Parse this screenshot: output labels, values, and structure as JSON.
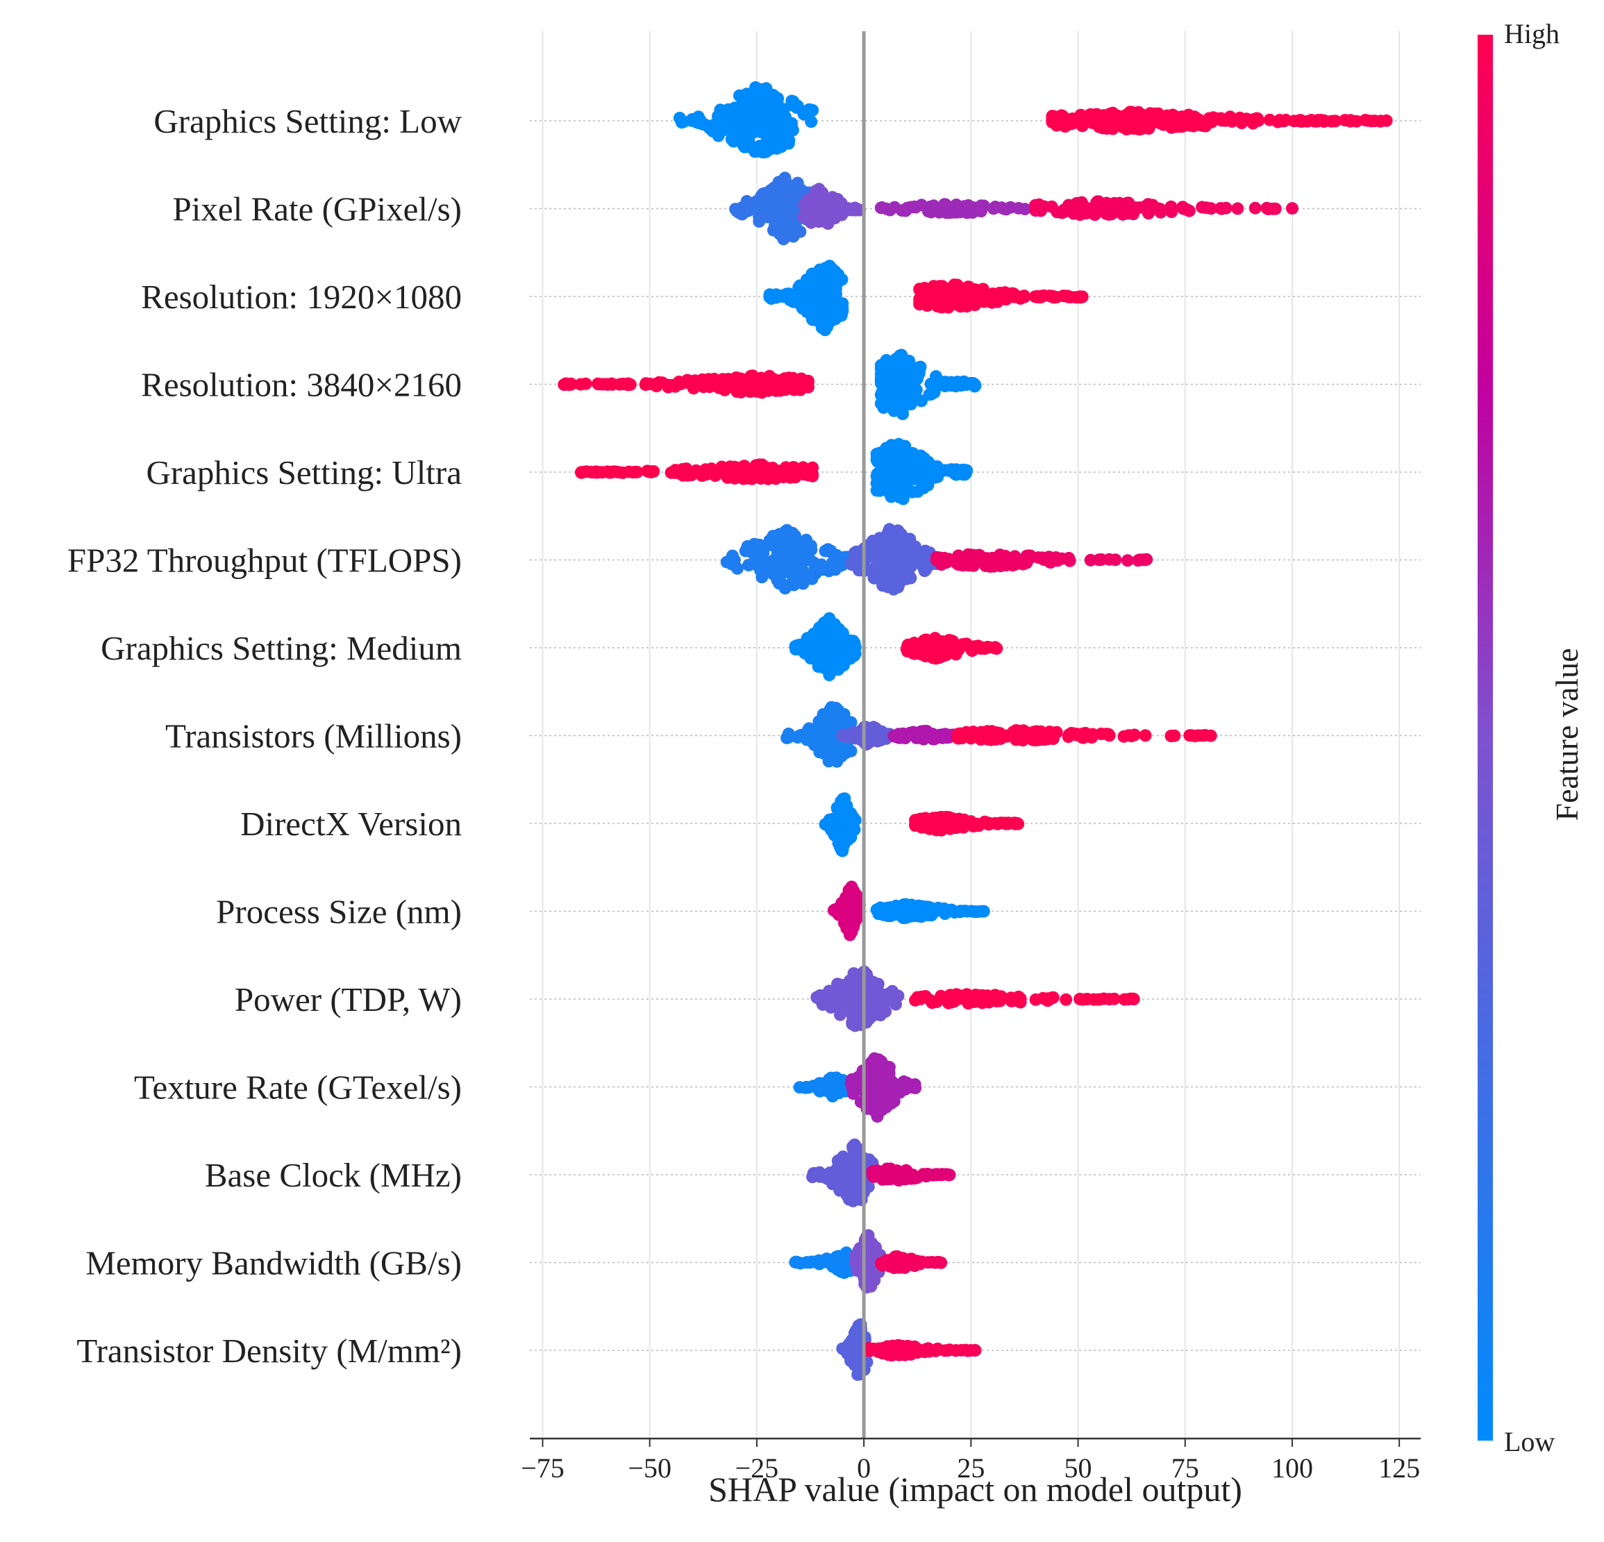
{
  "chart_data": {
    "type": "scatter",
    "subtype": "shap-beeswarm",
    "xlabel": "SHAP value (impact on model output)",
    "xlim": [
      -78,
      130
    ],
    "xticks": [
      -75,
      -50,
      -25,
      0,
      25,
      50,
      75,
      100,
      125
    ],
    "xtick_labels": [
      "−75",
      "−50",
      "−25",
      "0",
      "25",
      "50",
      "75",
      "100",
      "125"
    ],
    "zero_line": true,
    "grid": true,
    "colorbar": {
      "title": "Feature value",
      "high_label": "High",
      "low_label": "Low",
      "low_color": "#008bfb",
      "high_color": "#ff0051"
    },
    "features": [
      {
        "name": "Graphics Setting: Low",
        "clusters": [
          {
            "min": -43,
            "max": -12,
            "center": -24,
            "color": 0.0,
            "h": 1.0,
            "n": 180
          },
          {
            "min": 44,
            "max": 122,
            "center": 63,
            "color": 1.0,
            "h": 0.25,
            "n": 220
          }
        ]
      },
      {
        "name": "Pixel Rate (GPixel/s)",
        "clusters": [
          {
            "min": -30,
            "max": -7,
            "center": -18,
            "color": 0.2,
            "h": 0.9,
            "n": 150
          },
          {
            "min": -14,
            "max": -1,
            "center": -10,
            "color": 0.5,
            "h": 0.6,
            "n": 70
          },
          {
            "min": 4,
            "max": 40,
            "center": 20,
            "color": 0.62,
            "h": 0.15,
            "n": 70
          },
          {
            "min": 40,
            "max": 100,
            "center": 55,
            "color": 0.95,
            "h": 0.2,
            "n": 110
          }
        ]
      },
      {
        "name": "Resolution: 1920×1080",
        "clusters": [
          {
            "min": -22,
            "max": -5,
            "center": -9,
            "color": 0.0,
            "h": 0.95,
            "n": 160
          },
          {
            "min": 13,
            "max": 51,
            "center": 20,
            "color": 1.0,
            "h": 0.35,
            "n": 170
          }
        ]
      },
      {
        "name": "Resolution: 3840×2160",
        "clusters": [
          {
            "min": -70,
            "max": -13,
            "center": -25,
            "color": 1.0,
            "h": 0.25,
            "n": 190
          },
          {
            "min": 4,
            "max": 26,
            "center": 8,
            "color": 0.0,
            "h": 0.9,
            "n": 160
          }
        ]
      },
      {
        "name": "Graphics Setting: Ultra",
        "clusters": [
          {
            "min": -66,
            "max": -12,
            "center": -25,
            "color": 1.0,
            "h": 0.22,
            "n": 180
          },
          {
            "min": 3,
            "max": 24,
            "center": 8,
            "color": 0.0,
            "h": 0.9,
            "n": 160
          }
        ]
      },
      {
        "name": "FP32 Throughput (TFLOPS)",
        "clusters": [
          {
            "min": -32,
            "max": -2,
            "center": -18,
            "color": 0.12,
            "h": 0.85,
            "n": 150
          },
          {
            "min": -3,
            "max": 18,
            "center": 7,
            "color": 0.35,
            "h": 0.95,
            "n": 150
          },
          {
            "min": 17,
            "max": 66,
            "center": 28,
            "color": 0.93,
            "h": 0.2,
            "n": 110
          }
        ]
      },
      {
        "name": "Graphics Setting: Medium",
        "clusters": [
          {
            "min": -16,
            "max": -2,
            "center": -8,
            "color": 0.0,
            "h": 0.85,
            "n": 140
          },
          {
            "min": 10,
            "max": 31,
            "center": 17,
            "color": 1.0,
            "h": 0.3,
            "n": 140
          }
        ]
      },
      {
        "name": "Transistors (Millions)",
        "clusters": [
          {
            "min": -18,
            "max": -3,
            "center": -7,
            "color": 0.1,
            "h": 0.85,
            "n": 110
          },
          {
            "min": -5,
            "max": 6,
            "center": 1,
            "color": 0.4,
            "h": 0.3,
            "n": 60
          },
          {
            "min": 7,
            "max": 25,
            "center": 14,
            "color": 0.68,
            "h": 0.15,
            "n": 60
          },
          {
            "min": 22,
            "max": 81,
            "center": 35,
            "color": 1.0,
            "h": 0.15,
            "n": 120
          }
        ]
      },
      {
        "name": "DirectX Version",
        "clusters": [
          {
            "min": -9,
            "max": -2,
            "center": -5,
            "color": 0.0,
            "h": 0.8,
            "n": 110
          },
          {
            "min": 12,
            "max": 36,
            "center": 18,
            "color": 1.0,
            "h": 0.2,
            "n": 120
          }
        ]
      },
      {
        "name": "Process Size (nm)",
        "clusters": [
          {
            "min": -7,
            "max": -1,
            "center": -3,
            "color": 0.85,
            "h": 0.75,
            "n": 90
          },
          {
            "min": 3,
            "max": 28,
            "center": 10,
            "color": 0.0,
            "h": 0.2,
            "n": 120
          }
        ]
      },
      {
        "name": "Power (TDP, W)",
        "clusters": [
          {
            "min": -11,
            "max": 8,
            "center": -1,
            "color": 0.45,
            "h": 0.85,
            "n": 150
          },
          {
            "min": 12,
            "max": 63,
            "center": 25,
            "color": 1.0,
            "h": 0.15,
            "n": 110
          }
        ]
      },
      {
        "name": "Texture Rate (GTexel/s)",
        "clusters": [
          {
            "min": -15,
            "max": -3,
            "center": -7,
            "color": 0.05,
            "h": 0.3,
            "n": 70
          },
          {
            "min": -3,
            "max": 12,
            "center": 3,
            "color": 0.65,
            "h": 0.85,
            "n": 150
          }
        ]
      },
      {
        "name": "Base Clock (MHz)",
        "clusters": [
          {
            "min": -12,
            "max": 2,
            "center": -2,
            "color": 0.4,
            "h": 0.85,
            "n": 130
          },
          {
            "min": 2,
            "max": 20,
            "center": 7,
            "color": 0.88,
            "h": 0.2,
            "n": 80
          }
        ]
      },
      {
        "name": "Memory Bandwidth (GB/s)",
        "clusters": [
          {
            "min": -16,
            "max": 0,
            "center": -4,
            "color": 0.05,
            "h": 0.3,
            "n": 80
          },
          {
            "min": -2,
            "max": 5,
            "center": 1,
            "color": 0.5,
            "h": 0.8,
            "n": 100
          },
          {
            "min": 4,
            "max": 18,
            "center": 8,
            "color": 0.95,
            "h": 0.18,
            "n": 60
          }
        ]
      },
      {
        "name": "Transistor Density (M/mm²)",
        "clusters": [
          {
            "min": -5,
            "max": 1,
            "center": -1,
            "color": 0.35,
            "h": 0.8,
            "n": 100
          },
          {
            "min": 1,
            "max": 26,
            "center": 8,
            "color": 0.98,
            "h": 0.15,
            "n": 90
          }
        ]
      }
    ]
  }
}
